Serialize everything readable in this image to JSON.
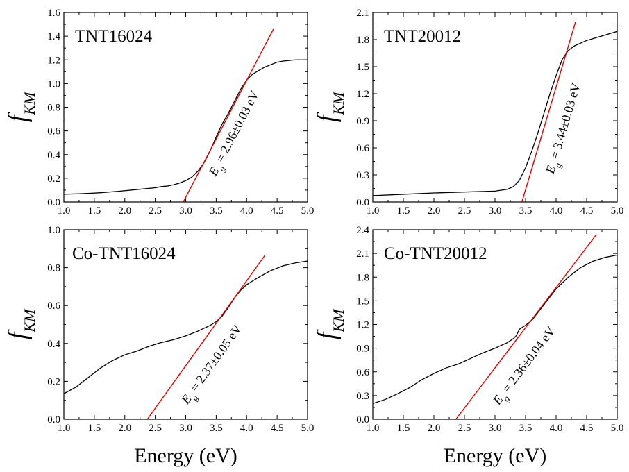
{
  "chart_data": [
    {
      "type": "line",
      "title": "TNT16024",
      "ylabel_main": "f",
      "ylabel_sub": "KM",
      "xlabel": "",
      "xlim": [
        1.0,
        5.0
      ],
      "ylim": [
        0.0,
        1.6
      ],
      "x_ticks": [
        "1.0",
        "1.5",
        "2.0",
        "2.5",
        "3.0",
        "3.5",
        "4.0",
        "4.5",
        "5.0"
      ],
      "y_ticks": [
        "0.0",
        "0.2",
        "0.4",
        "0.6",
        "0.8",
        "1.0",
        "1.2",
        "1.4",
        "1.6"
      ],
      "series": [
        {
          "x": [
            1.0,
            1.3,
            1.6,
            1.9,
            2.2,
            2.5,
            2.6,
            2.7,
            2.8,
            2.9,
            3.0,
            3.1,
            3.2,
            3.3,
            3.4,
            3.5,
            3.6,
            3.7,
            3.8,
            3.9,
            4.0,
            4.1,
            4.2,
            4.3,
            4.4,
            4.5,
            4.6,
            4.7,
            4.8,
            4.9,
            5.0
          ],
          "y": [
            0.065,
            0.07,
            0.078,
            0.09,
            0.105,
            0.12,
            0.13,
            0.135,
            0.145,
            0.16,
            0.18,
            0.21,
            0.26,
            0.33,
            0.43,
            0.55,
            0.66,
            0.75,
            0.85,
            0.95,
            1.03,
            1.08,
            1.11,
            1.14,
            1.16,
            1.18,
            1.19,
            1.195,
            1.2,
            1.2,
            1.2
          ]
        }
      ],
      "fit_line": {
        "x": [
          2.96,
          4.44
        ],
        "y": [
          0.0,
          1.46
        ],
        "color": "#e00000"
      },
      "annotation": {
        "E": "E",
        "sub": "g",
        "rest": " = 2.96±0.03 eV",
        "x": 3.62,
        "y": 0.6
      }
    },
    {
      "type": "line",
      "title": "TNT20012",
      "ylabel_main": "f",
      "ylabel_sub": "KM",
      "xlabel": "",
      "xlim": [
        1.0,
        5.0
      ],
      "ylim": [
        0.0,
        2.1
      ],
      "x_ticks": [
        "1.0",
        "1.5",
        "2.0",
        "2.5",
        "3.0",
        "3.5",
        "4.0",
        "4.5",
        "5.0"
      ],
      "y_ticks": [
        "0.0",
        "0.3",
        "0.6",
        "0.9",
        "1.2",
        "1.5",
        "1.8",
        "2.1"
      ],
      "series": [
        {
          "x": [
            1.0,
            1.5,
            2.0,
            2.5,
            3.0,
            3.2,
            3.3,
            3.4,
            3.5,
            3.6,
            3.7,
            3.8,
            3.9,
            4.0,
            4.1,
            4.2,
            4.3,
            4.4,
            4.5,
            4.6,
            4.7,
            4.8,
            4.9,
            5.0
          ],
          "y": [
            0.07,
            0.085,
            0.1,
            0.11,
            0.12,
            0.14,
            0.17,
            0.24,
            0.38,
            0.56,
            0.76,
            0.98,
            1.2,
            1.4,
            1.58,
            1.68,
            1.73,
            1.76,
            1.79,
            1.81,
            1.83,
            1.85,
            1.87,
            1.89
          ]
        }
      ],
      "fit_line": {
        "x": [
          3.44,
          4.32
        ],
        "y": [
          0.0,
          2.0
        ],
        "color": "#e00000"
      },
      "annotation": {
        "E": "E",
        "sub": "g",
        "rest": " = 3.44±0.03 eV",
        "x": 3.95,
        "y": 0.85
      }
    },
    {
      "type": "line",
      "title": "Co-TNT16024",
      "ylabel_main": "f",
      "ylabel_sub": "KM",
      "xlabel": "Energy (eV)",
      "xlim": [
        1.0,
        5.0
      ],
      "ylim": [
        0.0,
        1.0
      ],
      "x_ticks": [
        "1.0",
        "1.5",
        "2.0",
        "2.5",
        "3.0",
        "3.5",
        "4.0",
        "4.5",
        "5.0"
      ],
      "y_ticks": [
        "0.0",
        "0.2",
        "0.4",
        "0.6",
        "0.8",
        "1.0"
      ],
      "series": [
        {
          "x": [
            1.0,
            1.2,
            1.4,
            1.6,
            1.8,
            2.0,
            2.2,
            2.4,
            2.6,
            2.8,
            3.0,
            3.2,
            3.3,
            3.4,
            3.5,
            3.6,
            3.7,
            3.8,
            3.9,
            4.0,
            4.2,
            4.4,
            4.6,
            4.8,
            5.0
          ],
          "y": [
            0.135,
            0.17,
            0.22,
            0.27,
            0.31,
            0.34,
            0.36,
            0.385,
            0.405,
            0.42,
            0.44,
            0.465,
            0.48,
            0.495,
            0.515,
            0.545,
            0.59,
            0.64,
            0.68,
            0.71,
            0.75,
            0.785,
            0.81,
            0.825,
            0.835
          ]
        }
      ],
      "fit_line": {
        "x": [
          2.37,
          4.3
        ],
        "y": [
          0.0,
          0.865
        ],
        "color": "#e00000"
      },
      "annotation": {
        "E": "E",
        "sub": "g",
        "rest": " = 2.37±0.05 eV",
        "x": 3.25,
        "y": 0.3
      }
    },
    {
      "type": "line",
      "title": "Co-TNT20012",
      "ylabel_main": "f",
      "ylabel_sub": "KM",
      "xlabel": "Energy (eV)",
      "xlim": [
        1.0,
        5.0
      ],
      "ylim": [
        0.0,
        2.4
      ],
      "x_ticks": [
        "1.0",
        "1.5",
        "2.0",
        "2.5",
        "3.0",
        "3.5",
        "4.0",
        "4.5",
        "5.0"
      ],
      "y_ticks": [
        "0.0",
        "0.3",
        "0.6",
        "0.9",
        "1.2",
        "1.5",
        "1.8",
        "2.1",
        "2.4"
      ],
      "series": [
        {
          "x": [
            1.0,
            1.2,
            1.4,
            1.6,
            1.8,
            2.0,
            2.2,
            2.4,
            2.6,
            2.8,
            3.0,
            3.2,
            3.3,
            3.35,
            3.4,
            3.5,
            3.6,
            3.7,
            3.8,
            3.9,
            4.0,
            4.2,
            4.4,
            4.6,
            4.8,
            5.0
          ],
          "y": [
            0.2,
            0.25,
            0.32,
            0.4,
            0.5,
            0.58,
            0.65,
            0.7,
            0.77,
            0.84,
            0.9,
            0.97,
            1.02,
            1.06,
            1.14,
            1.19,
            1.25,
            1.35,
            1.45,
            1.55,
            1.65,
            1.8,
            1.92,
            2.0,
            2.05,
            2.08
          ]
        }
      ],
      "fit_line": {
        "x": [
          2.36,
          4.66
        ],
        "y": [
          0.0,
          2.34
        ],
        "color": "#e00000"
      },
      "annotation": {
        "E": "E",
        "sub": "g",
        "rest": " = 2.36±0.04 eV",
        "x": 3.3,
        "y": 0.7
      }
    }
  ]
}
